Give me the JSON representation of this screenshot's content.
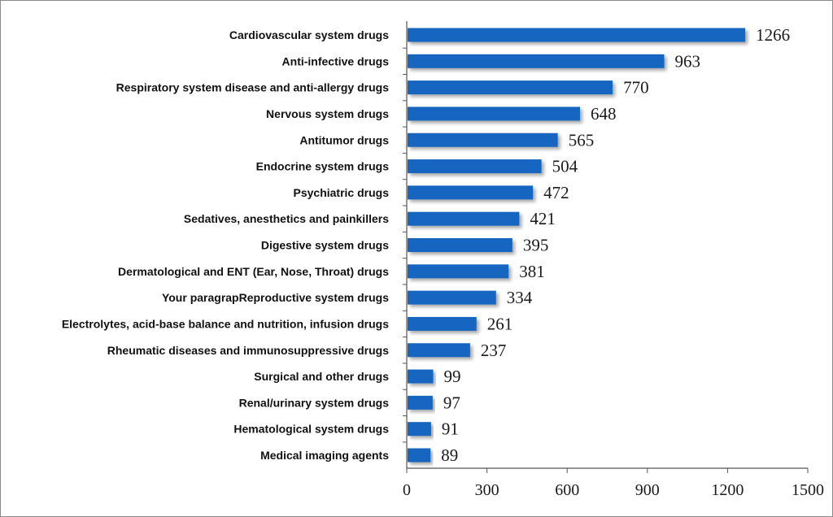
{
  "chart_data": {
    "type": "bar",
    "orientation": "horizontal",
    "title": "",
    "xlabel": "",
    "ylabel": "",
    "xlim": [
      0,
      1500
    ],
    "xticks": [
      0,
      300,
      600,
      900,
      1200,
      1500
    ],
    "grid": false,
    "bar_color": "#1565c0",
    "categories": [
      "Cardiovascular system drugs",
      "Anti-infective drugs",
      "Respiratory system disease and anti-allergy drugs",
      "Nervous system drugs",
      "Antitumor drugs",
      "Endocrine system drugs",
      "Psychiatric drugs",
      "Sedatives, anesthetics and painkillers",
      "Digestive system drugs",
      "Dermatological and ENT (Ear, Nose, Throat) drugs",
      "Your paragrapReproductive system drugs",
      "Electrolytes, acid-base balance and nutrition, infusion drugs",
      "Rheumatic diseases and immunosuppressive drugs",
      "Surgical and other drugs",
      "Renal/urinary system drugs",
      "Hematological system drugs",
      "Medical imaging agents"
    ],
    "values": [
      1266,
      963,
      770,
      648,
      565,
      504,
      472,
      421,
      395,
      381,
      334,
      261,
      237,
      99,
      97,
      91,
      89
    ]
  }
}
